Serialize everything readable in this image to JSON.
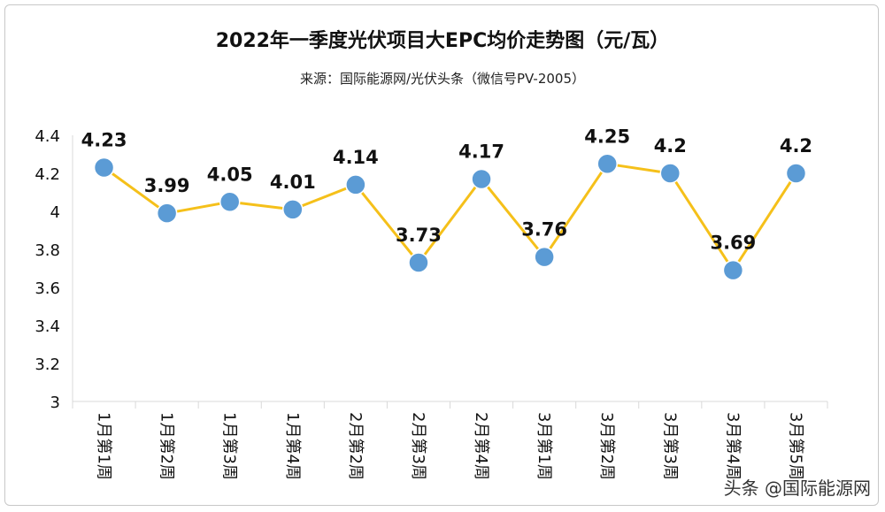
{
  "chart_data": {
    "type": "line",
    "title": "2022年一季度光伏项目大EPC均价走势图（元/瓦）",
    "subtitle": "来源：国际能源网/光伏头条（微信号PV-2005）",
    "categories": [
      "1月第1周",
      "1月第2周",
      "1月第3周",
      "1月第4周",
      "2月第2周",
      "2月第3周",
      "2月第4周",
      "3月第1周",
      "3月第2周",
      "3月第3周",
      "3月第4周",
      "3月第5周"
    ],
    "values": [
      4.23,
      3.99,
      4.05,
      4.01,
      4.14,
      3.73,
      4.17,
      3.76,
      4.25,
      4.2,
      3.69,
      4.2
    ],
    "value_labels": [
      "4.23",
      "3.99",
      "4.05",
      "4.01",
      "4.14",
      "3.73",
      "4.17",
      "3.76",
      "4.25",
      "4.2",
      "3.69",
      "4.2"
    ],
    "ylim": [
      3,
      4.4
    ],
    "yticks": [
      "3",
      "3.2",
      "3.4",
      "3.6",
      "3.8",
      "4",
      "4.2",
      "4.4"
    ],
    "grid": false,
    "line_color": "#f5c01a",
    "marker_color": "#5b9bd5",
    "axis_color": "#d9d9d9"
  },
  "watermark": "头条 @国际能源网"
}
